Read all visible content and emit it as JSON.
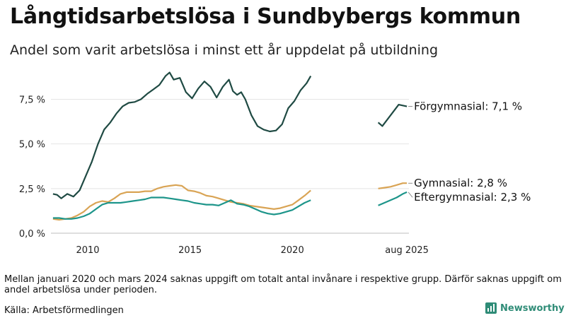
{
  "title": "Långtidsarbetslösa i Sundbybergs kommun",
  "subtitle": "Andel som varit arbetslösa i minst ett år uppdelat på utbildning",
  "note": "Mellan januari 2020 och mars 2024 saknas uppgift om totalt antal invånare i respektive grupp. Därför saknas uppgift om andel arbetslösa under perioden.",
  "source": "Källa: Arbetsförmedlingen",
  "brand": "Newsworthy",
  "colors": {
    "forgymnasial": "#1f4a43",
    "gymnasial": "#d9a455",
    "eftergymnasial": "#1d958a"
  },
  "chart_data": {
    "type": "line",
    "x_unit": "year",
    "xlim": [
      2008.2,
      2025.7
    ],
    "ylim": [
      0,
      9.3
    ],
    "y_ticks": [
      {
        "value": 0,
        "label": "0,0 %"
      },
      {
        "value": 2.5,
        "label": "2,5 %"
      },
      {
        "value": 5.0,
        "label": "5,0 %"
      },
      {
        "value": 7.5,
        "label": "7,5 %"
      }
    ],
    "x_ticks": [
      {
        "value": 2010,
        "label": "2010"
      },
      {
        "value": 2015,
        "label": "2015"
      },
      {
        "value": 2020,
        "label": "2020"
      },
      {
        "value": 2025.6,
        "label": "aug 2025"
      }
    ],
    "gap": [
      2021.0,
      2024.2
    ],
    "grid": true,
    "series": [
      {
        "name": "Förgymnasial",
        "label": "Förgymnasial: 7,1 %",
        "color": "#1f4a43",
        "segments": [
          [
            [
              2008.3,
              2.2
            ],
            [
              2008.5,
              2.15
            ],
            [
              2008.7,
              1.95
            ],
            [
              2009.0,
              2.2
            ],
            [
              2009.3,
              2.05
            ],
            [
              2009.6,
              2.4
            ],
            [
              2009.9,
              3.2
            ],
            [
              2010.2,
              4.0
            ],
            [
              2010.5,
              5.0
            ],
            [
              2010.8,
              5.8
            ],
            [
              2011.1,
              6.2
            ],
            [
              2011.4,
              6.7
            ],
            [
              2011.7,
              7.1
            ],
            [
              2012.0,
              7.3
            ],
            [
              2012.3,
              7.35
            ],
            [
              2012.6,
              7.5
            ],
            [
              2012.9,
              7.8
            ],
            [
              2013.2,
              8.05
            ],
            [
              2013.5,
              8.3
            ],
            [
              2013.8,
              8.8
            ],
            [
              2014.0,
              9.0
            ],
            [
              2014.2,
              8.6
            ],
            [
              2014.5,
              8.7
            ],
            [
              2014.8,
              7.9
            ],
            [
              2015.1,
              7.55
            ],
            [
              2015.4,
              8.1
            ],
            [
              2015.7,
              8.5
            ],
            [
              2016.0,
              8.2
            ],
            [
              2016.3,
              7.6
            ],
            [
              2016.6,
              8.2
            ],
            [
              2016.9,
              8.6
            ],
            [
              2017.1,
              7.95
            ],
            [
              2017.3,
              7.75
            ],
            [
              2017.5,
              7.9
            ],
            [
              2017.7,
              7.5
            ],
            [
              2018.0,
              6.6
            ],
            [
              2018.3,
              6.0
            ],
            [
              2018.6,
              5.8
            ],
            [
              2018.9,
              5.7
            ],
            [
              2019.2,
              5.75
            ],
            [
              2019.5,
              6.1
            ],
            [
              2019.8,
              7.0
            ],
            [
              2020.1,
              7.4
            ],
            [
              2020.4,
              8.0
            ],
            [
              2020.7,
              8.4
            ],
            [
              2020.9,
              8.8
            ]
          ],
          [
            [
              2024.2,
              6.2
            ],
            [
              2024.4,
              6.0
            ],
            [
              2024.6,
              6.3
            ],
            [
              2024.8,
              6.6
            ],
            [
              2025.0,
              6.9
            ],
            [
              2025.2,
              7.2
            ],
            [
              2025.4,
              7.15
            ],
            [
              2025.6,
              7.1
            ]
          ]
        ]
      },
      {
        "name": "Gymnasial",
        "label": "Gymnasial: 2,8 %",
        "color": "#d9a455",
        "segments": [
          [
            [
              2008.3,
              0.8
            ],
            [
              2008.6,
              0.75
            ],
            [
              2008.9,
              0.8
            ],
            [
              2009.2,
              0.85
            ],
            [
              2009.5,
              1.0
            ],
            [
              2009.8,
              1.2
            ],
            [
              2010.1,
              1.5
            ],
            [
              2010.4,
              1.7
            ],
            [
              2010.7,
              1.8
            ],
            [
              2011.0,
              1.75
            ],
            [
              2011.3,
              1.95
            ],
            [
              2011.6,
              2.2
            ],
            [
              2011.9,
              2.3
            ],
            [
              2012.2,
              2.3
            ],
            [
              2012.5,
              2.3
            ],
            [
              2012.8,
              2.35
            ],
            [
              2013.1,
              2.35
            ],
            [
              2013.4,
              2.5
            ],
            [
              2013.7,
              2.6
            ],
            [
              2014.0,
              2.65
            ],
            [
              2014.3,
              2.7
            ],
            [
              2014.6,
              2.65
            ],
            [
              2014.9,
              2.4
            ],
            [
              2015.2,
              2.35
            ],
            [
              2015.5,
              2.25
            ],
            [
              2015.8,
              2.1
            ],
            [
              2016.1,
              2.05
            ],
            [
              2016.4,
              1.95
            ],
            [
              2016.7,
              1.85
            ],
            [
              2017.0,
              1.75
            ],
            [
              2017.3,
              1.7
            ],
            [
              2017.6,
              1.65
            ],
            [
              2017.9,
              1.55
            ],
            [
              2018.2,
              1.5
            ],
            [
              2018.5,
              1.45
            ],
            [
              2018.8,
              1.4
            ],
            [
              2019.1,
              1.35
            ],
            [
              2019.4,
              1.4
            ],
            [
              2019.7,
              1.5
            ],
            [
              2020.0,
              1.6
            ],
            [
              2020.3,
              1.85
            ],
            [
              2020.6,
              2.1
            ],
            [
              2020.9,
              2.4
            ]
          ],
          [
            [
              2024.2,
              2.5
            ],
            [
              2024.5,
              2.55
            ],
            [
              2024.8,
              2.6
            ],
            [
              2025.1,
              2.7
            ],
            [
              2025.4,
              2.8
            ],
            [
              2025.6,
              2.8
            ]
          ]
        ]
      },
      {
        "name": "Eftergymnasial",
        "label": "Eftergymnasial: 2,3 %",
        "color": "#1d958a",
        "segments": [
          [
            [
              2008.3,
              0.85
            ],
            [
              2008.6,
              0.85
            ],
            [
              2008.9,
              0.8
            ],
            [
              2009.2,
              0.8
            ],
            [
              2009.5,
              0.85
            ],
            [
              2009.8,
              0.95
            ],
            [
              2010.1,
              1.1
            ],
            [
              2010.4,
              1.35
            ],
            [
              2010.7,
              1.6
            ],
            [
              2011.0,
              1.7
            ],
            [
              2011.3,
              1.7
            ],
            [
              2011.6,
              1.7
            ],
            [
              2011.9,
              1.75
            ],
            [
              2012.2,
              1.8
            ],
            [
              2012.5,
              1.85
            ],
            [
              2012.8,
              1.9
            ],
            [
              2013.1,
              2.0
            ],
            [
              2013.4,
              2.0
            ],
            [
              2013.7,
              2.0
            ],
            [
              2014.0,
              1.95
            ],
            [
              2014.3,
              1.9
            ],
            [
              2014.6,
              1.85
            ],
            [
              2014.9,
              1.8
            ],
            [
              2015.2,
              1.7
            ],
            [
              2015.5,
              1.65
            ],
            [
              2015.8,
              1.6
            ],
            [
              2016.1,
              1.6
            ],
            [
              2016.4,
              1.55
            ],
            [
              2016.7,
              1.7
            ],
            [
              2017.0,
              1.85
            ],
            [
              2017.3,
              1.65
            ],
            [
              2017.6,
              1.6
            ],
            [
              2017.9,
              1.5
            ],
            [
              2018.2,
              1.35
            ],
            [
              2018.5,
              1.2
            ],
            [
              2018.8,
              1.1
            ],
            [
              2019.1,
              1.05
            ],
            [
              2019.4,
              1.1
            ],
            [
              2019.7,
              1.2
            ],
            [
              2020.0,
              1.3
            ],
            [
              2020.3,
              1.5
            ],
            [
              2020.6,
              1.7
            ],
            [
              2020.9,
              1.85
            ]
          ],
          [
            [
              2024.2,
              1.55
            ],
            [
              2024.5,
              1.7
            ],
            [
              2024.8,
              1.85
            ],
            [
              2025.1,
              2.0
            ],
            [
              2025.4,
              2.2
            ],
            [
              2025.6,
              2.3
            ]
          ]
        ]
      }
    ]
  }
}
